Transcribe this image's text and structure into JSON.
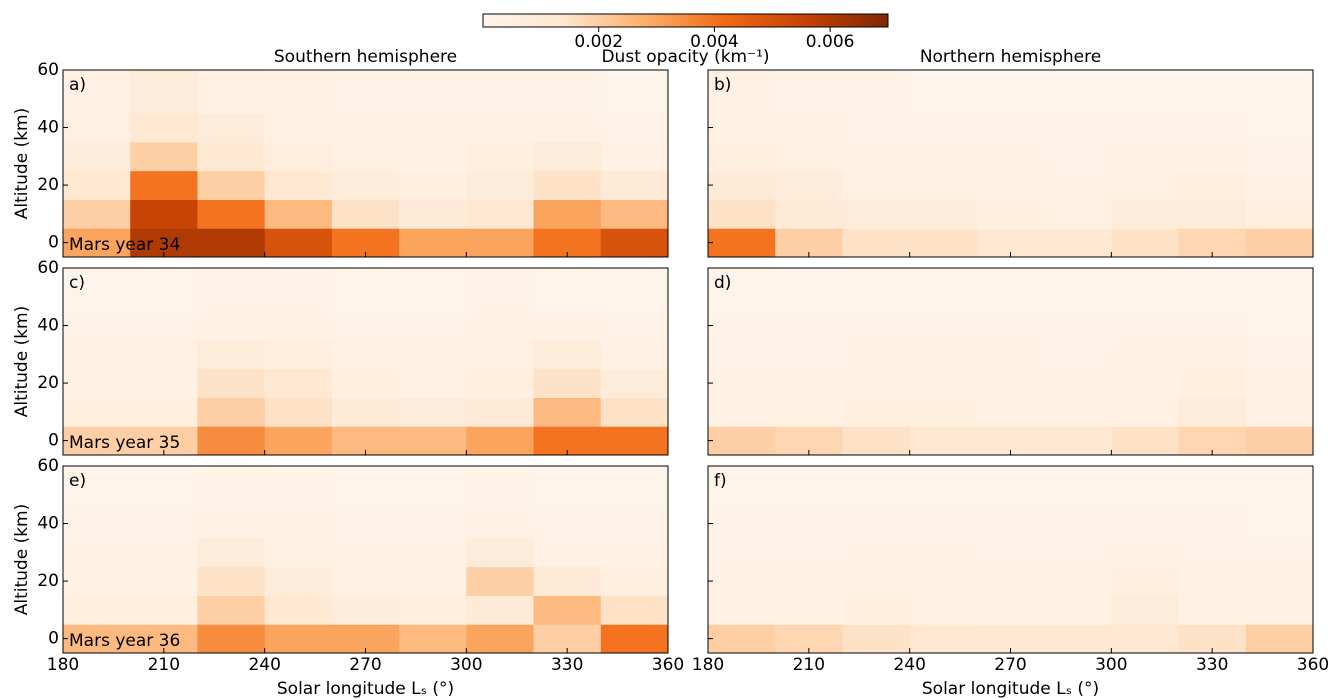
{
  "colorbar": {
    "label": "Dust opacity (km⁻¹)",
    "lim": [
      0,
      0.007
    ],
    "ticks": [
      0.002,
      0.004,
      0.006
    ],
    "colors": [
      "#fff5eb",
      "#fee6ce",
      "#fdae6b",
      "#f16913",
      "#c44103",
      "#7f2704"
    ]
  },
  "chart_data": [
    {
      "type": "heatmap",
      "title": "Southern hemisphere",
      "annotations": [
        "a)",
        "Mars year 34"
      ],
      "ylabel": "Altitude (km)",
      "x_bins": [
        180,
        200,
        220,
        240,
        260,
        280,
        300,
        320,
        340,
        360
      ],
      "y_bins": [
        -5,
        5,
        15,
        25,
        35,
        45,
        60
      ],
      "xlim": [
        180,
        360
      ],
      "ylim": [
        -5,
        60
      ],
      "xticks": [
        180,
        210,
        240,
        270,
        300,
        330,
        360
      ],
      "yticks": [
        0,
        20,
        40,
        60
      ],
      "xticklabels": false,
      "yticklabels": true,
      "values": [
        [
          0.003,
          0.006,
          0.006,
          0.005,
          0.004,
          0.003,
          0.003,
          0.004,
          0.005
        ],
        [
          0.002,
          0.0055,
          0.004,
          0.0025,
          0.0015,
          0.001,
          0.0012,
          0.003,
          0.0025
        ],
        [
          0.0012,
          0.004,
          0.002,
          0.0012,
          0.0008,
          0.0006,
          0.0008,
          0.0015,
          0.001
        ],
        [
          0.0008,
          0.002,
          0.0012,
          0.0007,
          0.0005,
          0.0004,
          0.0006,
          0.0008,
          0.0004
        ],
        [
          0.0005,
          0.0012,
          0.0008,
          0.0005,
          0.0003,
          0.0003,
          0.0004,
          0.0003,
          0.0002
        ],
        [
          0.0004,
          0.0008,
          0.0005,
          0.0003,
          0.0002,
          0.0002,
          0.0002,
          0.0002,
          0.0001
        ]
      ]
    },
    {
      "type": "heatmap",
      "title": "Northern hemisphere",
      "annotations": [
        "b)"
      ],
      "x_bins": [
        180,
        200,
        220,
        240,
        260,
        280,
        300,
        320,
        340,
        360
      ],
      "y_bins": [
        -5,
        5,
        15,
        25,
        35,
        45,
        60
      ],
      "xlim": [
        180,
        360
      ],
      "ylim": [
        -5,
        60
      ],
      "xticks": [
        180,
        210,
        240,
        270,
        300,
        330,
        360
      ],
      "yticks": [
        0,
        20,
        40,
        60
      ],
      "xticklabels": false,
      "yticklabels": false,
      "values": [
        [
          0.004,
          0.002,
          0.0015,
          0.0015,
          0.0012,
          0.0012,
          0.0015,
          0.0018,
          0.002
        ],
        [
          0.0015,
          0.001,
          0.0008,
          0.0008,
          0.0006,
          0.0005,
          0.0008,
          0.0008,
          0.0006
        ],
        [
          0.001,
          0.0008,
          0.0005,
          0.0005,
          0.0004,
          0.0003,
          0.0005,
          0.0006,
          0.0003
        ],
        [
          0.0006,
          0.0005,
          0.0003,
          0.0003,
          0.0003,
          0.0002,
          0.0003,
          0.0003,
          0.0002
        ],
        [
          0.0004,
          0.0003,
          0.0002,
          0.0002,
          0.0002,
          0.0002,
          0.0002,
          0.0002,
          0.0001
        ],
        [
          0.0003,
          0.0002,
          0.0002,
          0.0001,
          0.0001,
          0.0001,
          0.0001,
          0.0001,
          0.0001
        ]
      ]
    },
    {
      "type": "heatmap",
      "annotations": [
        "c)",
        "Mars year 35"
      ],
      "ylabel": "Altitude (km)",
      "x_bins": [
        180,
        200,
        220,
        240,
        260,
        280,
        300,
        320,
        340,
        360
      ],
      "y_bins": [
        -5,
        5,
        15,
        25,
        35,
        45,
        60
      ],
      "xlim": [
        180,
        360
      ],
      "ylim": [
        -5,
        60
      ],
      "xticks": [
        180,
        210,
        240,
        270,
        300,
        330,
        360
      ],
      "yticks": [
        0,
        20,
        40,
        60
      ],
      "xticklabels": false,
      "yticklabels": true,
      "values": [
        [
          0.002,
          0.002,
          0.0035,
          0.003,
          0.0025,
          0.0025,
          0.003,
          0.004,
          0.004
        ],
        [
          0.0006,
          0.0006,
          0.002,
          0.0015,
          0.001,
          0.0008,
          0.001,
          0.0025,
          0.0015
        ],
        [
          0.0004,
          0.0004,
          0.0015,
          0.0012,
          0.0006,
          0.0005,
          0.0006,
          0.0015,
          0.0008
        ],
        [
          0.0003,
          0.0003,
          0.0008,
          0.0006,
          0.0004,
          0.0003,
          0.0005,
          0.0008,
          0.0004
        ],
        [
          0.0002,
          0.0002,
          0.0004,
          0.0003,
          0.0002,
          0.0002,
          0.0003,
          0.0003,
          0.0002
        ],
        [
          0.0001,
          0.0001,
          0.0002,
          0.0002,
          0.0001,
          0.0001,
          0.0002,
          0.0001,
          0.0001
        ]
      ]
    },
    {
      "type": "heatmap",
      "annotations": [
        "d)"
      ],
      "x_bins": [
        180,
        200,
        220,
        240,
        260,
        280,
        300,
        320,
        340,
        360
      ],
      "y_bins": [
        -5,
        5,
        15,
        25,
        35,
        45,
        60
      ],
      "xlim": [
        180,
        360
      ],
      "ylim": [
        -5,
        60
      ],
      "xticks": [
        180,
        210,
        240,
        270,
        300,
        330,
        360
      ],
      "yticks": [
        0,
        20,
        40,
        60
      ],
      "xticklabels": false,
      "yticklabels": false,
      "values": [
        [
          0.002,
          0.0018,
          0.0015,
          0.0012,
          0.0012,
          0.0012,
          0.0015,
          0.0018,
          0.002
        ],
        [
          0.0004,
          0.0004,
          0.0006,
          0.0006,
          0.0005,
          0.0004,
          0.0005,
          0.0008,
          0.0004
        ],
        [
          0.0003,
          0.0003,
          0.0004,
          0.0004,
          0.0004,
          0.0003,
          0.0004,
          0.0006,
          0.0003
        ],
        [
          0.0002,
          0.0002,
          0.0003,
          0.0003,
          0.0003,
          0.0002,
          0.0003,
          0.0003,
          0.0002
        ],
        [
          0.0002,
          0.0002,
          0.0002,
          0.0002,
          0.0002,
          0.0002,
          0.0002,
          0.0002,
          0.0001
        ],
        [
          0.0001,
          0.0001,
          0.0001,
          0.0001,
          0.0001,
          0.0001,
          0.0001,
          0.0001,
          0.0001
        ]
      ]
    },
    {
      "type": "heatmap",
      "annotations": [
        "e)",
        "Mars year 36"
      ],
      "ylabel": "Altitude (km)",
      "xlabel": "Solar longitude Lₛ (°)",
      "x_bins": [
        180,
        200,
        220,
        240,
        260,
        280,
        300,
        320,
        340,
        360
      ],
      "y_bins": [
        -5,
        5,
        15,
        25,
        35,
        45,
        60
      ],
      "xlim": [
        180,
        360
      ],
      "ylim": [
        -5,
        60
      ],
      "xticks": [
        180,
        210,
        240,
        270,
        300,
        330,
        360
      ],
      "yticks": [
        0,
        20,
        40,
        60
      ],
      "xticklabels": true,
      "yticklabels": true,
      "values": [
        [
          0.0025,
          0.0025,
          0.0035,
          0.003,
          0.003,
          0.0025,
          0.003,
          0.002,
          0.004
        ],
        [
          0.0006,
          0.0006,
          0.002,
          0.0012,
          0.0008,
          0.0006,
          0.001,
          0.0025,
          0.0015
        ],
        [
          0.0004,
          0.0004,
          0.0015,
          0.0008,
          0.0005,
          0.0004,
          0.002,
          0.001,
          0.0006
        ],
        [
          0.0003,
          0.0003,
          0.0008,
          0.0005,
          0.0004,
          0.0003,
          0.0008,
          0.0004,
          0.0003
        ],
        [
          0.0002,
          0.0002,
          0.0004,
          0.0003,
          0.0002,
          0.0002,
          0.0003,
          0.0002,
          0.0002
        ],
        [
          0.0001,
          0.0001,
          0.0002,
          0.0002,
          0.0001,
          0.0001,
          0.0002,
          0.0001,
          0.0001
        ]
      ]
    },
    {
      "type": "heatmap",
      "annotations": [
        "f)"
      ],
      "xlabel": "Solar longitude Lₛ (°)",
      "x_bins": [
        180,
        200,
        220,
        240,
        260,
        280,
        300,
        320,
        340,
        360
      ],
      "y_bins": [
        -5,
        5,
        15,
        25,
        35,
        45,
        60
      ],
      "xlim": [
        180,
        360
      ],
      "ylim": [
        -5,
        60
      ],
      "xticks": [
        180,
        210,
        240,
        270,
        300,
        330,
        360
      ],
      "yticks": [
        0,
        20,
        40,
        60
      ],
      "xticklabels": true,
      "yticklabels": false,
      "values": [
        [
          0.002,
          0.0018,
          0.0015,
          0.0012,
          0.0012,
          0.0012,
          0.0012,
          0.0015,
          0.002
        ],
        [
          0.0004,
          0.0004,
          0.0006,
          0.0005,
          0.0004,
          0.0004,
          0.0008,
          0.0004,
          0.0004
        ],
        [
          0.0003,
          0.0003,
          0.0005,
          0.0004,
          0.0003,
          0.0003,
          0.0006,
          0.0003,
          0.0003
        ],
        [
          0.0002,
          0.0002,
          0.0003,
          0.0003,
          0.0002,
          0.0002,
          0.0003,
          0.0002,
          0.0002
        ],
        [
          0.0002,
          0.0002,
          0.0002,
          0.0002,
          0.0002,
          0.0002,
          0.0002,
          0.0002,
          0.0001
        ],
        [
          0.0001,
          0.0001,
          0.0001,
          0.0001,
          0.0001,
          0.0001,
          0.0001,
          0.0001,
          0.0001
        ]
      ]
    }
  ]
}
